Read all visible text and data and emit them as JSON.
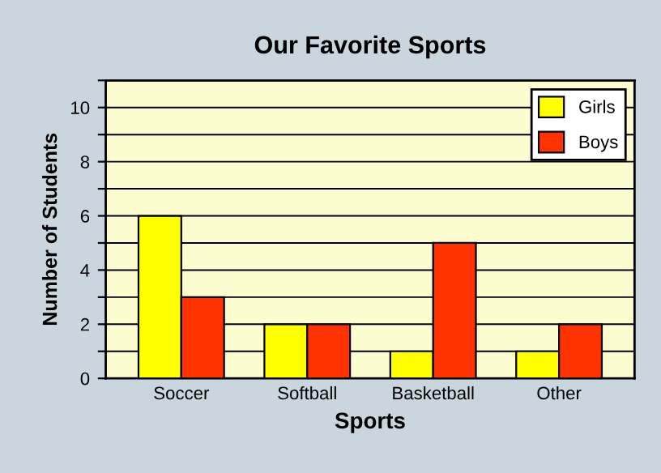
{
  "chart_data": {
    "type": "bar",
    "title": "Our Favorite Sports",
    "xlabel": "Sports",
    "ylabel": "Number of Students",
    "categories": [
      "Soccer",
      "Softball",
      "Basketball",
      "Other"
    ],
    "series": [
      {
        "name": "Girls",
        "color": "#ffff00",
        "values": [
          6,
          2,
          1,
          1
        ]
      },
      {
        "name": "Boys",
        "color": "#ff3300",
        "values": [
          3,
          2,
          5,
          2
        ]
      }
    ],
    "ylim": [
      0,
      11
    ],
    "yticks": [
      0,
      {
        "value": 1,
        "label": null
      },
      2,
      {
        "value": 3,
        "label": null
      },
      4,
      {
        "value": 5,
        "label": null
      },
      6,
      {
        "value": 7,
        "label": null
      },
      8,
      {
        "value": 9,
        "label": null
      },
      10,
      {
        "value": 11,
        "label": null
      }
    ],
    "grid": "y",
    "legend": "top right"
  }
}
